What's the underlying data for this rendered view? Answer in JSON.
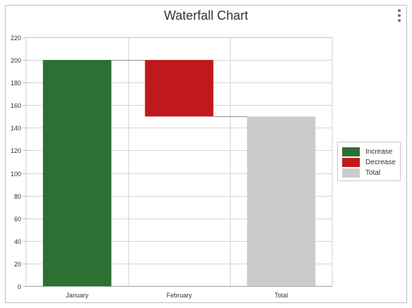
{
  "chart_data": {
    "type": "bar",
    "subtype": "waterfall",
    "title": "Waterfall Chart",
    "xlabel": "",
    "ylabel": "",
    "categories": [
      "January",
      "February",
      "Total"
    ],
    "bars": [
      {
        "category": "January",
        "kind": "Increase",
        "start": 0,
        "end": 200
      },
      {
        "category": "February",
        "kind": "Decrease",
        "start": 200,
        "end": 150
      },
      {
        "category": "Total",
        "kind": "Total",
        "start": 0,
        "end": 150
      }
    ],
    "ylim": [
      0,
      220
    ],
    "yticks": [
      0,
      20,
      40,
      60,
      80,
      100,
      120,
      140,
      160,
      180,
      200,
      220
    ],
    "grid": true,
    "connectors": true,
    "legend": {
      "position": "right",
      "entries": [
        {
          "label": "Increase",
          "color": "#2e7033"
        },
        {
          "label": "Decrease",
          "color": "#c0191b"
        },
        {
          "label": "Total",
          "color": "#cbcbcb"
        }
      ]
    }
  },
  "ui": {
    "menu_icon": "vertical-ellipsis-icon"
  }
}
